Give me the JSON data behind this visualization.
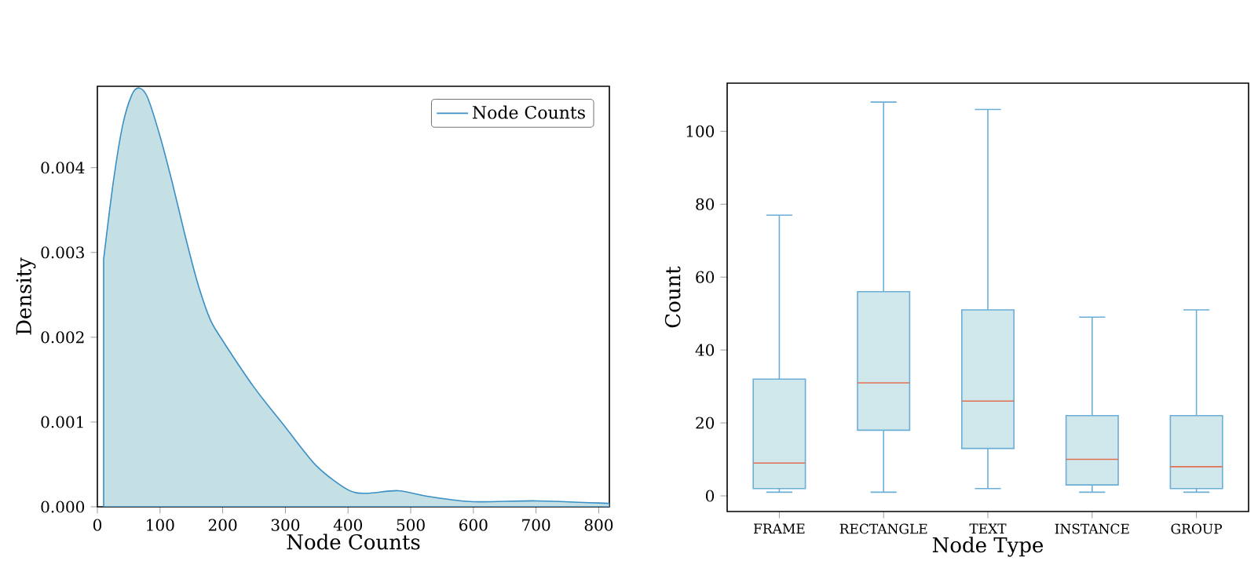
{
  "chart_data": [
    {
      "type": "area",
      "xlabel": "Node Counts",
      "ylabel": "Density",
      "xlim": [
        0,
        817
      ],
      "ylim": [
        0,
        0.00496
      ],
      "xticks": [
        0,
        100,
        200,
        300,
        400,
        500,
        600,
        700,
        800
      ],
      "yticks": [
        {
          "value": 0,
          "label": "0.000"
        },
        {
          "value": 0.001,
          "label": "0.001"
        },
        {
          "value": 0.002,
          "label": "0.002"
        },
        {
          "value": 0.003,
          "label": "0.003"
        },
        {
          "value": 0.004,
          "label": "0.004"
        }
      ],
      "legend": "top right",
      "series": [
        {
          "name": "Node Counts",
          "color": "#3a8fc4",
          "x": [
            10,
            25,
            40,
            55,
            67,
            80,
            100,
            120,
            140,
            160,
            180,
            200,
            250,
            300,
            350,
            400,
            430,
            480,
            530,
            600,
            700,
            817
          ],
          "values": [
            0.00292,
            0.00381,
            0.00449,
            0.00486,
            0.00494,
            0.00483,
            0.00437,
            0.00381,
            0.0032,
            0.00264,
            0.00221,
            0.00196,
            0.00141,
            0.00094,
            0.00048,
            0.0002,
            0.00016,
            0.00019,
            0.00012,
            6e-05,
            7e-05,
            4e-05
          ]
        }
      ]
    },
    {
      "type": "box",
      "xlabel": "Node Type",
      "ylabel": "Count",
      "categories": [
        "FRAME",
        "RECTANGLE",
        "TEXT",
        "INSTANCE",
        "GROUP"
      ],
      "ylim": [
        -4.3,
        113.2
      ],
      "yticks": [
        0,
        20,
        40,
        60,
        80,
        100
      ],
      "color": "#6baed6",
      "boxes": [
        {
          "low": 1,
          "q1": 2,
          "median": 9,
          "q3": 32,
          "high": 77
        },
        {
          "low": 1,
          "q1": 18,
          "median": 31,
          "q3": 56,
          "high": 108
        },
        {
          "low": 2,
          "q1": 13,
          "median": 26,
          "q3": 51,
          "high": 106
        },
        {
          "low": 1,
          "q1": 3,
          "median": 10,
          "q3": 22,
          "high": 49
        },
        {
          "low": 1,
          "q1": 2,
          "median": 8,
          "q3": 22,
          "high": 51
        }
      ]
    }
  ]
}
